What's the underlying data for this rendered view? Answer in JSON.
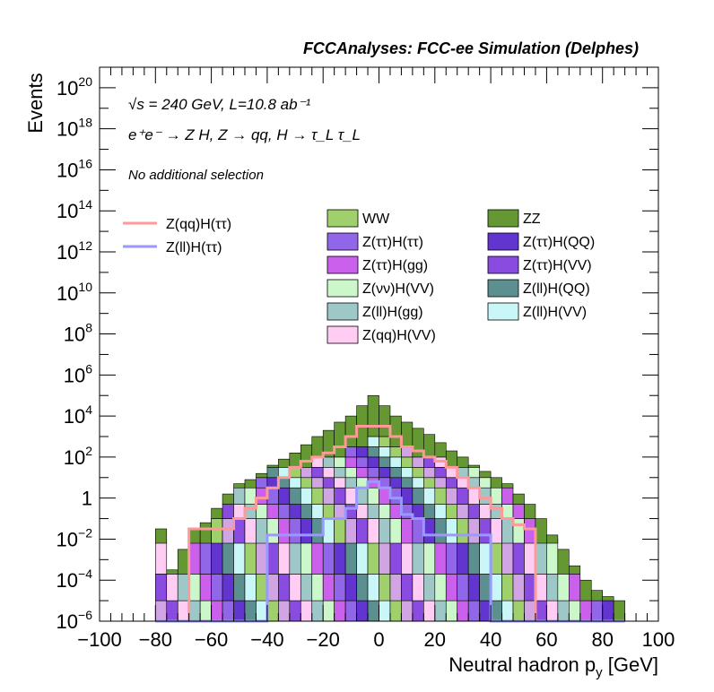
{
  "chart_data": {
    "type": "bar",
    "stacked": true,
    "log_y": true,
    "title": "FCCAnalyses: FCC-ee Simulation (Delphes)",
    "xlabel": "Neutral hadron p_y [GeV]",
    "xlabel_main": "Neutral hadron p",
    "xlabel_sub": "y",
    "xlabel_unit": " [GeV]",
    "ylabel": "Events",
    "xlim": [
      -100,
      100
    ],
    "ylim": [
      1e-06,
      1e+21
    ],
    "annotations": {
      "energy": "√s = 240 GeV, L=10.8 ab⁻¹",
      "process": "e⁺e⁻ → Z H, Z → qq, H → τ_L τ_L",
      "selection": "No additional selection"
    },
    "x_ticks": [
      "−100",
      "−80",
      "−60",
      "−40",
      "−20",
      "0",
      "20",
      "40",
      "60",
      "80",
      "100"
    ],
    "y_ticks": [
      {
        "base": "10",
        "exp": "−6",
        "value": 1e-06
      },
      {
        "base": "10",
        "exp": "−4",
        "value": 0.0001
      },
      {
        "base": "10",
        "exp": "−2",
        "value": 0.01
      },
      {
        "base": "1",
        "exp": "",
        "value": 1
      },
      {
        "base": "10",
        "exp": "2",
        "value": 100.0
      },
      {
        "base": "10",
        "exp": "4",
        "value": 10000.0
      },
      {
        "base": "10",
        "exp": "6",
        "value": 1000000.0
      },
      {
        "base": "10",
        "exp": "8",
        "value": 100000000.0
      },
      {
        "base": "10",
        "exp": "10",
        "value": 10000000000.0
      },
      {
        "base": "10",
        "exp": "12",
        "value": 1000000000000.0
      },
      {
        "base": "10",
        "exp": "14",
        "value": 100000000000000.0
      },
      {
        "base": "10",
        "exp": "16",
        "value": 1e+16
      },
      {
        "base": "10",
        "exp": "18",
        "value": 1e+18
      },
      {
        "base": "10",
        "exp": "20",
        "value": 1e+20
      }
    ],
    "bin_width": 4,
    "bin_centers": [
      -78,
      -74,
      -70,
      -66,
      -62,
      -58,
      -54,
      -50,
      -46,
      -42,
      -38,
      -34,
      -30,
      -26,
      -22,
      -18,
      -14,
      -10,
      -6,
      -2,
      2,
      6,
      10,
      14,
      18,
      22,
      26,
      30,
      34,
      38,
      42,
      46,
      50,
      54,
      58,
      62,
      66,
      70,
      74,
      78,
      82,
      86
    ],
    "stack_edges_log10": [
      -5,
      -3.7,
      -2,
      -1,
      -2.2,
      -1,
      -0.3,
      0.5,
      1,
      1.5,
      2,
      2.5,
      3,
      3.5,
      4,
      4.5
    ],
    "stack_colors": [
      "#d1a4e4",
      "#8a4ce0",
      "#ffccf4",
      "#9ec8c8",
      "#cbf7cb",
      "#ca60ec",
      "#9166e8",
      "#6234d0",
      "#5c8f90",
      "#c9f7f7",
      "#9fd06b",
      "#659833"
    ],
    "stacked_series_top_to_bottom": [
      {
        "name": "ZZ",
        "color": "#659833"
      },
      {
        "name": "WW",
        "color": "#9fd06b"
      },
      {
        "name": "Z(ll)H(VV)",
        "color": "#c9f7f7"
      },
      {
        "name": "Z(ll)H(QQ)",
        "color": "#5c8f90"
      },
      {
        "name": "Z(ττ)H(QQ)",
        "color": "#6234d0"
      },
      {
        "name": "Z(ττ)H(ττ)",
        "color": "#9166e8"
      },
      {
        "name": "Z(ττ)H(gg)",
        "color": "#ca60ec"
      },
      {
        "name": "Z(νν)H(VV)",
        "color": "#cbf7cb"
      },
      {
        "name": "Z(ll)H(gg)",
        "color": "#9ec8c8"
      },
      {
        "name": "Z(qq)H(VV)",
        "color": "#ffccf4"
      },
      {
        "name": "Z(ττ)H(VV)",
        "color": "#8a4ce0"
      }
    ],
    "total_log10": [
      -1.5,
      -3.5,
      -2.5,
      -1.5,
      -1.2,
      -0.5,
      0.2,
      0.7,
      0.9,
      1.2,
      1.6,
      1.9,
      2.2,
      2.6,
      3.0,
      3.3,
      3.7,
      4.0,
      4.5,
      5.0,
      4.5,
      4.0,
      3.7,
      3.4,
      3.1,
      2.7,
      2.3,
      2.0,
      1.6,
      1.3,
      1.0,
      0.7,
      0.2,
      -0.3,
      -1.0,
      -1.8,
      -2.5,
      -3.3,
      -4.0,
      -4.5,
      -4.8,
      -5.0
    ],
    "max_stack_layers": [
      8,
      8,
      6,
      7,
      7,
      9,
      9,
      9,
      10,
      10,
      11,
      11,
      11,
      11,
      12,
      12,
      12,
      13,
      13,
      14,
      14,
      13,
      13,
      12,
      12,
      12,
      11,
      11,
      11,
      10,
      10,
      9,
      8,
      7,
      6,
      5,
      4,
      3,
      3,
      2,
      2,
      1
    ],
    "overlay_series": [
      {
        "name": "Z(qq)H(ττ)",
        "color": "#ff9999",
        "values_log10": [
          -10,
          -10,
          -10,
          -1.5,
          -1.5,
          -1.5,
          -1.5,
          -1.0,
          -0.5,
          0.0,
          0.5,
          1.0,
          1.5,
          1.8,
          2.0,
          2.2,
          2.5,
          3.0,
          3.5,
          3.5,
          3.5,
          3.0,
          2.5,
          2.3,
          2.0,
          1.8,
          1.5,
          1.0,
          0.5,
          0.0,
          -0.5,
          -1.0,
          -1.3,
          -1.5,
          -10,
          -10,
          -10,
          -10,
          -10,
          -10,
          -10,
          -10
        ]
      },
      {
        "name": "Z(ll)H(ττ)",
        "color": "#9999ff",
        "values_log10": [
          -10,
          -10,
          -10,
          -10,
          -10,
          -10,
          -10,
          -10,
          -6.0,
          -6.0,
          -1.8,
          -1.8,
          -1.8,
          -1.8,
          -1.8,
          -1.0,
          -1.0,
          -0.5,
          0.5,
          0.8,
          0.5,
          0.0,
          -0.8,
          -1.0,
          -1.8,
          -1.8,
          -1.8,
          -1.8,
          -1.8,
          -1.8,
          -6.0,
          -10,
          -10,
          -10,
          -10,
          -10,
          -10,
          -10,
          -10,
          -10,
          -10,
          -10
        ]
      }
    ],
    "legend": {
      "left_lines": [
        {
          "label": "Z(qq)H(ττ)",
          "color": "#ff9999"
        },
        {
          "label": "Z(ll)H(ττ)",
          "color": "#9999ff"
        }
      ],
      "boxes_col1": [
        {
          "label": "WW",
          "color": "#9fd06b"
        },
        {
          "label": "Z(ττ)H(ττ)",
          "color": "#9166e8"
        },
        {
          "label": "Z(ττ)H(gg)",
          "color": "#ca60ec"
        },
        {
          "label": "Z(νν)H(VV)",
          "color": "#cbf7cb"
        },
        {
          "label": "Z(ll)H(gg)",
          "color": "#9ec8c8"
        },
        {
          "label": "Z(qq)H(VV)",
          "color": "#ffccf4"
        }
      ],
      "boxes_col2": [
        {
          "label": "ZZ",
          "color": "#659833"
        },
        {
          "label": "Z(ττ)H(QQ)",
          "color": "#6234d0"
        },
        {
          "label": "Z(ττ)H(VV)",
          "color": "#8a4ce0"
        },
        {
          "label": "Z(ll)H(QQ)",
          "color": "#5c8f90"
        },
        {
          "label": "Z(ll)H(VV)",
          "color": "#c9f7f7"
        }
      ]
    }
  }
}
